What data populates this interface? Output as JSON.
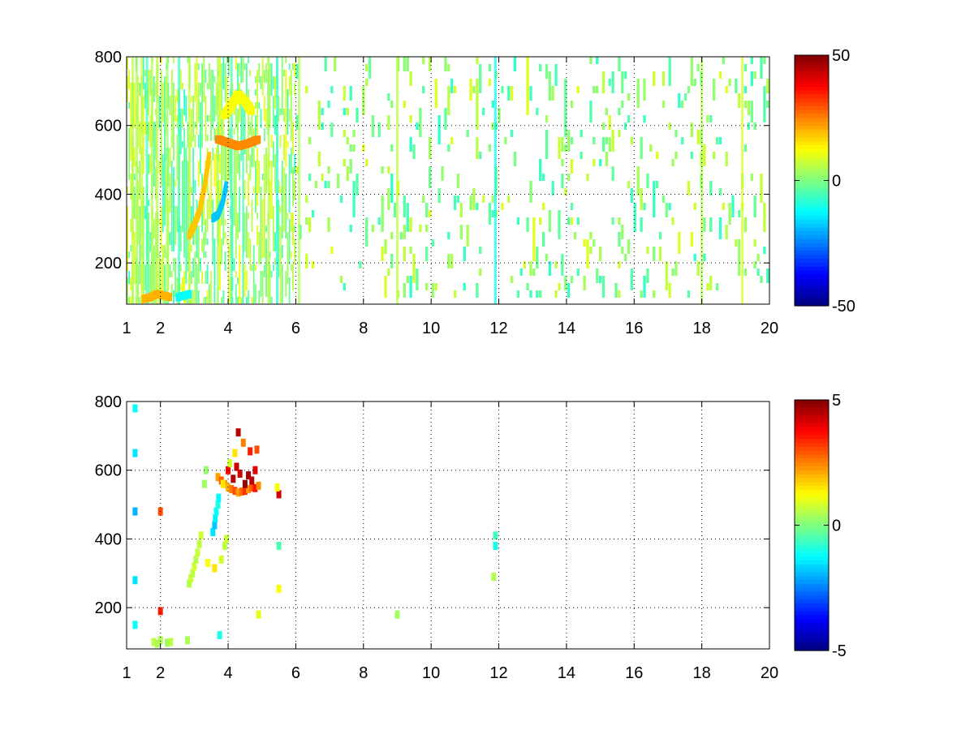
{
  "figure": {
    "background": "#ffffff",
    "colormap": "jet"
  },
  "chart_data": [
    {
      "type": "heatmap",
      "title": "",
      "xlabel": "",
      "ylabel": "",
      "xlim": [
        1,
        20
      ],
      "ylim": [
        80,
        800
      ],
      "x_scale": "linear (1 to 20)",
      "x_ticks": [
        1,
        2,
        4,
        6,
        8,
        10,
        12,
        14,
        16,
        18,
        20
      ],
      "y_ticks": [
        200,
        400,
        600,
        800
      ],
      "grid": true,
      "colorbar": {
        "min": -50,
        "max": 50,
        "ticks": [
          -50,
          0,
          50
        ]
      },
      "texture": {
        "seed": 7,
        "segments": [
          {
            "x0": 1,
            "x1": 6,
            "cols": 95,
            "row_h": 8,
            "density": 0.55,
            "values": [
              -8,
              12
            ],
            "continuity": 0.82
          },
          {
            "x0": 6,
            "x1": 20,
            "cols": 150,
            "row_h": 9,
            "density": 0.2,
            "values": [
              -8,
              10
            ],
            "continuity": 0.45
          }
        ],
        "streaks_x": [
          1.18,
          1.3,
          1.45,
          1.6,
          1.75,
          1.9,
          2.2,
          2.55,
          2.85,
          3.7,
          4.1,
          5.2,
          5.45,
          6.1,
          9.0,
          11.9,
          18.0,
          19.2
        ],
        "streak_values": [
          6,
          4,
          8,
          -6,
          5,
          7,
          3,
          -7,
          6,
          4,
          -5,
          5,
          -9,
          4,
          6,
          -12,
          5,
          9
        ]
      },
      "features": [
        {
          "x": [
            2.85,
            3.0,
            3.15,
            3.3,
            3.45
          ],
          "y": [
            280,
            310,
            350,
            420,
            520
          ],
          "value": 18,
          "width": 0.12
        },
        {
          "x": [
            3.55,
            3.7,
            3.85,
            3.95
          ],
          "y": [
            330,
            340,
            380,
            430
          ],
          "value": -18,
          "width": 0.1
        },
        {
          "x": [
            3.7,
            4.0,
            4.3,
            4.6,
            4.9
          ],
          "y": [
            560,
            550,
            540,
            548,
            560
          ],
          "value": 24,
          "width": 0.18
        },
        {
          "x": [
            3.9,
            4.1,
            4.3,
            4.5,
            4.7
          ],
          "y": [
            630,
            660,
            690,
            670,
            640
          ],
          "value": 12,
          "width": 0.22
        },
        {
          "x": [
            1.5,
            1.7,
            1.9,
            2.1,
            2.3
          ],
          "y": [
            95,
            100,
            110,
            105,
            100
          ],
          "value": 20,
          "width": 0.12
        },
        {
          "x": [
            2.5,
            2.7,
            2.9
          ],
          "y": [
            100,
            105,
            110
          ],
          "value": -12,
          "width": 0.1
        }
      ]
    },
    {
      "type": "heatmap",
      "title": "",
      "xlabel": "",
      "ylabel": "",
      "xlim": [
        1,
        20
      ],
      "ylim": [
        80,
        800
      ],
      "x_scale": "linear (1 to 20)",
      "x_ticks": [
        1,
        2,
        4,
        6,
        8,
        10,
        12,
        14,
        16,
        18,
        20
      ],
      "y_ticks": [
        200,
        400,
        600,
        800
      ],
      "grid": true,
      "colorbar": {
        "min": -5,
        "max": 5,
        "ticks": [
          -5,
          0,
          5
        ]
      },
      "points": [
        {
          "x": 1.25,
          "y": 780,
          "value": -1.2
        },
        {
          "x": 1.25,
          "y": 650,
          "value": -1.5
        },
        {
          "x": 1.25,
          "y": 480,
          "value": -2
        },
        {
          "x": 1.25,
          "y": 280,
          "value": -1.5
        },
        {
          "x": 1.25,
          "y": 150,
          "value": -1.2
        },
        {
          "x": 2.0,
          "y": 480,
          "value": 3
        },
        {
          "x": 2.0,
          "y": 190,
          "value": 3.5
        },
        {
          "x": 1.8,
          "y": 100,
          "value": 0.6
        },
        {
          "x": 1.9,
          "y": 95,
          "value": 0.4
        },
        {
          "x": 2.0,
          "y": 105,
          "value": 0.5
        },
        {
          "x": 2.2,
          "y": 98,
          "value": 0.3
        },
        {
          "x": 2.3,
          "y": 100,
          "value": 0.6
        },
        {
          "x": 2.8,
          "y": 105,
          "value": 0.4
        },
        {
          "x": 2.85,
          "y": 270,
          "value": 0.5
        },
        {
          "x": 2.9,
          "y": 285,
          "value": 0.7
        },
        {
          "x": 2.95,
          "y": 300,
          "value": 0.6
        },
        {
          "x": 3.0,
          "y": 320,
          "value": 0.8
        },
        {
          "x": 3.05,
          "y": 340,
          "value": 0.5
        },
        {
          "x": 3.1,
          "y": 360,
          "value": 0.7
        },
        {
          "x": 3.15,
          "y": 385,
          "value": 0.6
        },
        {
          "x": 3.2,
          "y": 410,
          "value": 0.8
        },
        {
          "x": 3.3,
          "y": 560,
          "value": 0.3
        },
        {
          "x": 3.35,
          "y": 600,
          "value": 0.2
        },
        {
          "x": 3.55,
          "y": 420,
          "value": -1.5
        },
        {
          "x": 3.6,
          "y": 440,
          "value": -1.8
        },
        {
          "x": 3.62,
          "y": 460,
          "value": -1.4
        },
        {
          "x": 3.65,
          "y": 480,
          "value": -1.2
        },
        {
          "x": 3.7,
          "y": 500,
          "value": -1.0
        },
        {
          "x": 3.72,
          "y": 520,
          "value": -1.3
        },
        {
          "x": 3.4,
          "y": 330,
          "value": 1.2
        },
        {
          "x": 3.6,
          "y": 315,
          "value": 1.5
        },
        {
          "x": 3.8,
          "y": 340,
          "value": 0.8
        },
        {
          "x": 3.9,
          "y": 380,
          "value": 0.6
        },
        {
          "x": 3.95,
          "y": 400,
          "value": 0.7
        },
        {
          "x": 3.75,
          "y": 120,
          "value": -1.0
        },
        {
          "x": 3.7,
          "y": 580,
          "value": 2.2
        },
        {
          "x": 3.8,
          "y": 570,
          "value": 2.8
        },
        {
          "x": 3.9,
          "y": 560,
          "value": 2.4
        },
        {
          "x": 4.0,
          "y": 550,
          "value": 2.0
        },
        {
          "x": 4.1,
          "y": 545,
          "value": 2.6
        },
        {
          "x": 4.2,
          "y": 540,
          "value": 3.0
        },
        {
          "x": 4.3,
          "y": 535,
          "value": 2.2
        },
        {
          "x": 4.4,
          "y": 538,
          "value": 2.7
        },
        {
          "x": 4.5,
          "y": 540,
          "value": 3.3
        },
        {
          "x": 4.6,
          "y": 545,
          "value": 2.3
        },
        {
          "x": 4.7,
          "y": 550,
          "value": 2.9
        },
        {
          "x": 4.8,
          "y": 548,
          "value": 3.6
        },
        {
          "x": 4.9,
          "y": 555,
          "value": 2.4
        },
        {
          "x": 4.15,
          "y": 575,
          "value": 4.5
        },
        {
          "x": 4.35,
          "y": 590,
          "value": 4.2
        },
        {
          "x": 4.6,
          "y": 585,
          "value": 4.6
        },
        {
          "x": 4.8,
          "y": 600,
          "value": 4.0
        },
        {
          "x": 4.0,
          "y": 600,
          "value": 3.8
        },
        {
          "x": 4.25,
          "y": 610,
          "value": 4.3
        },
        {
          "x": 4.5,
          "y": 560,
          "value": 4.8
        },
        {
          "x": 4.7,
          "y": 570,
          "value": 4.4
        },
        {
          "x": 3.85,
          "y": 560,
          "value": 1.5
        },
        {
          "x": 4.05,
          "y": 620,
          "value": 0.8
        },
        {
          "x": 4.2,
          "y": 650,
          "value": 1.5
        },
        {
          "x": 4.3,
          "y": 710,
          "value": 4.5
        },
        {
          "x": 4.45,
          "y": 680,
          "value": 2.5
        },
        {
          "x": 4.65,
          "y": 655,
          "value": 3.5
        },
        {
          "x": 4.85,
          "y": 660,
          "value": 3.0
        },
        {
          "x": 5.5,
          "y": 530,
          "value": 4.2
        },
        {
          "x": 5.45,
          "y": 550,
          "value": 1.2
        },
        {
          "x": 5.5,
          "y": 255,
          "value": 1.2
        },
        {
          "x": 5.5,
          "y": 380,
          "value": -0.5
        },
        {
          "x": 4.9,
          "y": 180,
          "value": 1.0
        },
        {
          "x": 9.0,
          "y": 180,
          "value": 0.3
        },
        {
          "x": 11.9,
          "y": 410,
          "value": -0.6
        },
        {
          "x": 11.9,
          "y": 380,
          "value": -1.0
        },
        {
          "x": 11.85,
          "y": 290,
          "value": 0.5
        }
      ]
    }
  ]
}
